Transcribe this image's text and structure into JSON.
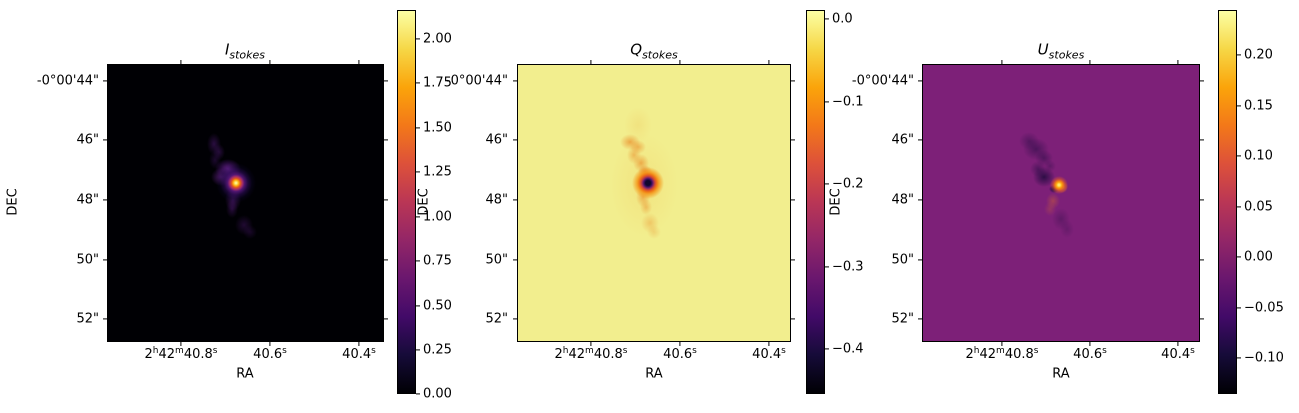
{
  "panels": [
    {
      "title_base": "I",
      "title_sub": "stokes",
      "xlabel": "RA",
      "ylabel": "DEC",
      "yticks": [
        "-0°00'44\"",
        "46\"",
        "48\"",
        "50\"",
        "52\""
      ],
      "xticks": [
        [
          [
            "2",
            "h"
          ],
          [
            "42",
            "m"
          ],
          [
            "40.8",
            "s"
          ]
        ],
        [
          [
            "40.6",
            "s"
          ]
        ],
        [
          [
            "40.4",
            "s"
          ]
        ]
      ],
      "colorbar": {
        "ticks": [
          "2.00",
          "1.75",
          "1.50",
          "1.25",
          "1.00",
          "0.75",
          "0.50",
          "0.25",
          "0.00"
        ]
      }
    },
    {
      "title_base": "Q",
      "title_sub": "stokes",
      "xlabel": "RA",
      "ylabel": "DEC",
      "yticks": [
        "-0°00'44\"",
        "46\"",
        "48\"",
        "50\"",
        "52\""
      ],
      "xticks": [
        [
          [
            "2",
            "h"
          ],
          [
            "42",
            "m"
          ],
          [
            "40.8",
            "s"
          ]
        ],
        [
          [
            "40.6",
            "s"
          ]
        ],
        [
          [
            "40.4",
            "s"
          ]
        ]
      ],
      "colorbar": {
        "ticks": [
          "0.0",
          "−0.1",
          "−0.2",
          "−0.3",
          "−0.4"
        ]
      }
    },
    {
      "title_base": "U",
      "title_sub": "stokes",
      "xlabel": "RA",
      "ylabel": "DEC",
      "yticks": [
        "-0°00'44\"",
        "46\"",
        "48\"",
        "50\"",
        "52\""
      ],
      "xticks": [
        [
          [
            "2",
            "h"
          ],
          [
            "42",
            "m"
          ],
          [
            "40.8",
            "s"
          ]
        ],
        [
          [
            "40.6",
            "s"
          ]
        ],
        [
          [
            "40.4",
            "s"
          ]
        ]
      ],
      "colorbar": {
        "ticks": [
          "0.20",
          "0.15",
          "0.10",
          "0.05",
          "0.00",
          "−0.05",
          "−0.10"
        ]
      }
    }
  ],
  "chart_data": [
    {
      "type": "heatmap",
      "title": "I_stokes",
      "xlabel": "RA",
      "ylabel": "DEC",
      "xtick_labels": [
        "2h42m40.8s",
        "40.6s",
        "40.4s"
      ],
      "ytick_labels": [
        "-0°00'44\"",
        "46\"",
        "48\"",
        "50\"",
        "52\""
      ],
      "colormap": "inferno",
      "colorbar_ticks": [
        2.0,
        1.75,
        1.5,
        1.25,
        1.0,
        0.75,
        0.5,
        0.25,
        0.0
      ],
      "value_range": [
        0.0,
        2.17
      ],
      "background_value": 0.0,
      "features": "mostly black field; faint purple diffuse emission elongated NNE-SSW around RA 2h42m40.7s, DEC -0°00'46\" to -0°00'49\"; compact bright peak (~2.1) at RA 2h42m40.68s, DEC -0°00'47.5\""
    },
    {
      "type": "heatmap",
      "title": "Q_stokes",
      "xlabel": "RA",
      "ylabel": "DEC",
      "xtick_labels": [
        "2h42m40.8s",
        "40.6s",
        "40.4s"
      ],
      "ytick_labels": [
        "-0°00'44\"",
        "46\"",
        "48\"",
        "50\"",
        "52\""
      ],
      "colormap": "inferno",
      "colorbar_ticks": [
        0.0,
        -0.1,
        -0.2,
        -0.3,
        -0.4
      ],
      "value_range": [
        -0.455,
        0.01
      ],
      "background_value": 0.0,
      "features": "pale yellow field (Q≈0); weak negative orange S-shaped filament along same axis; strong negative dip (~-0.45, dark spot with orange rim) at RA 2h42m40.68s, DEC -0°00'47.5\""
    },
    {
      "type": "heatmap",
      "title": "U_stokes",
      "xlabel": "RA",
      "ylabel": "DEC",
      "xtick_labels": [
        "2h42m40.8s",
        "40.6s",
        "40.4s"
      ],
      "ytick_labels": [
        "-0°00'44\"",
        "46\"",
        "48\"",
        "50\"",
        "52\""
      ],
      "colormap": "inferno",
      "colorbar_ticks": [
        0.2,
        0.15,
        0.1,
        0.05,
        0.0,
        -0.05,
        -0.1
      ],
      "value_range": [
        -0.137,
        0.245
      ],
      "background_value": 0.0,
      "features": "magenta-purple field (U≈0); cluster of negative dark-blue blobs NW of center; compact positive bright streak (~0.24) at RA 2h42m40.68s, DEC -0°00'47.4\" with small negative spot adjacent; faint positive patch below"
    }
  ],
  "layout_hints": {
    "grid": false,
    "panel_backgrounds": [
      "#000004",
      "#f2ee8e",
      "#7d2078"
    ],
    "colorbar_gradient_top": "#fcffa4",
    "colorbar_gradient_bottom": "#000004",
    "text_color": "#000000"
  }
}
